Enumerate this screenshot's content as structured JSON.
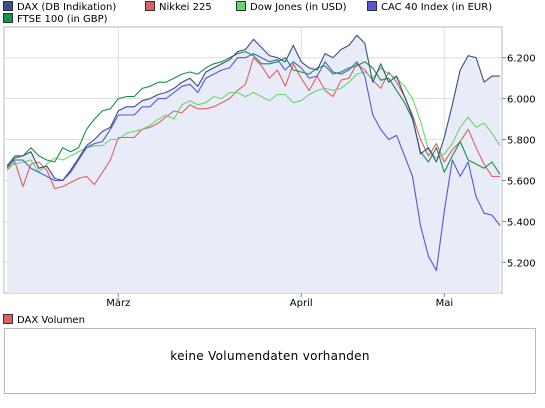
{
  "chart_data": {
    "type": "line",
    "x_labels": [
      "März",
      "April",
      "Mai"
    ],
    "y_ticks": [
      "6.200",
      "6.000",
      "5.800",
      "5.600",
      "5.400",
      "5.200"
    ],
    "ylim": [
      5050,
      6350
    ],
    "grid": true,
    "legend_position": "top-left",
    "series": [
      {
        "name": "DAX (DB Indikation)",
        "color": "#3c4e84",
        "values": [
          5670,
          5720,
          5720,
          5740,
          5660,
          5670,
          5610,
          5600,
          5650,
          5710,
          5770,
          5800,
          5840,
          5860,
          5940,
          5960,
          5960,
          5990,
          6000,
          6020,
          6030,
          6050,
          6080,
          6100,
          6060,
          6130,
          6150,
          6170,
          6190,
          6230,
          6240,
          6290,
          6250,
          6210,
          6200,
          6180,
          6260,
          6180,
          6150,
          6140,
          6220,
          6200,
          6240,
          6260,
          6310,
          6270,
          6080,
          6170,
          6080,
          6110,
          6010,
          5910,
          5730,
          5760,
          5690,
          5810,
          5970,
          6140,
          6210,
          6200,
          6080,
          6110,
          6110
        ]
      },
      {
        "name": "Nikkei 225",
        "color": "#e06060",
        "values": [
          5650,
          5690,
          5570,
          5680,
          5690,
          5650,
          5560,
          5570,
          5590,
          5610,
          5620,
          5580,
          5640,
          5700,
          5810,
          5810,
          5810,
          5850,
          5860,
          5880,
          5910,
          5940,
          5930,
          5970,
          5950,
          5950,
          5960,
          5980,
          6000,
          6040,
          6070,
          6200,
          6160,
          6100,
          6140,
          6060,
          6170,
          6100,
          6040,
          6110,
          6040,
          6010,
          6090,
          6100,
          6170,
          6140,
          6090,
          6050,
          6130,
          6080,
          6010,
          5920,
          5800,
          5720,
          5780,
          5690,
          5750,
          5790,
          5850,
          5760,
          5680,
          5620,
          5620
        ]
      },
      {
        "name": "Dow Jones (in USD)",
        "color": "#66d866",
        "values": [
          5670,
          5680,
          5690,
          5700,
          5640,
          5680,
          5710,
          5700,
          5720,
          5740,
          5760,
          5770,
          5770,
          5800,
          5800,
          5830,
          5840,
          5850,
          5870,
          5900,
          5920,
          5900,
          5970,
          5990,
          5970,
          5980,
          6010,
          6000,
          6030,
          6030,
          6010,
          6030,
          6010,
          5990,
          6020,
          6020,
          5980,
          5990,
          6020,
          6040,
          6050,
          6040,
          6050,
          6080,
          6120,
          6130,
          6100,
          6150,
          6120,
          6100,
          6060,
          6000,
          5890,
          5750,
          5710,
          5730,
          5780,
          5860,
          5910,
          5860,
          5880,
          5830,
          5770
        ]
      },
      {
        "name": "CAC 40 Index (in EUR)",
        "color": "#5656d8",
        "values": [
          5670,
          5700,
          5700,
          5660,
          5640,
          5620,
          5600,
          5600,
          5640,
          5700,
          5760,
          5780,
          5790,
          5850,
          5920,
          5920,
          5920,
          5960,
          5960,
          6000,
          6000,
          6030,
          6060,
          6070,
          6030,
          6100,
          6120,
          6140,
          6150,
          6200,
          6200,
          6220,
          6200,
          6180,
          6190,
          6140,
          6180,
          6150,
          6100,
          6110,
          6180,
          6130,
          6120,
          6140,
          6180,
          6110,
          5920,
          5850,
          5800,
          5820,
          5720,
          5620,
          5380,
          5230,
          5160,
          5450,
          5700,
          5620,
          5690,
          5520,
          5440,
          5430,
          5380
        ]
      },
      {
        "name": "FTSE 100 (in GBP)",
        "color": "#18904a",
        "values": [
          5660,
          5710,
          5720,
          5760,
          5720,
          5700,
          5690,
          5760,
          5740,
          5760,
          5850,
          5900,
          5940,
          5950,
          6000,
          6010,
          6010,
          6050,
          6060,
          6080,
          6080,
          6100,
          6120,
          6130,
          6120,
          6150,
          6170,
          6180,
          6200,
          6220,
          6230,
          6210,
          6170,
          6170,
          6180,
          6200,
          6140,
          6130,
          6120,
          6150,
          6160,
          6120,
          6130,
          6150,
          6160,
          6180,
          6150,
          6090,
          6100,
          6040,
          5980,
          5900,
          5740,
          5690,
          5760,
          5640,
          5720,
          5790,
          5700,
          5680,
          5660,
          5690,
          5630
        ]
      }
    ],
    "volume_panel": {
      "legend": "DAX Volumen",
      "legend_color": "#e06060",
      "message": "keine Volumendaten vorhanden"
    }
  }
}
